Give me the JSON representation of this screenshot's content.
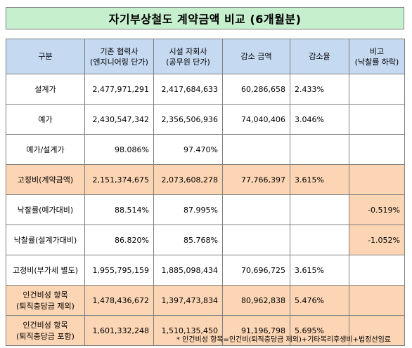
{
  "title": "자기부상철도 계약금액 비교 (6개월분)",
  "headers": {
    "col0": "구분",
    "col1_line1": "기존 협력사",
    "col1_line2": "(엔지니어링 단가)",
    "col2_line1": "시설 자회사",
    "col2_line2": "(공무원 단가)",
    "col3": "감소 금액",
    "col4": "감소율",
    "col5_line1": "비고",
    "col5_line2": "(낙찰률 하락)"
  },
  "rows": [
    {
      "label": "설계가",
      "existing": "2,477,971,291",
      "subsidiary": "2,417,684,633",
      "decrease": "60,286,658",
      "rate": "2.433%",
      "note": ""
    },
    {
      "label": "예가",
      "existing": "2,430,547,342",
      "subsidiary": "2,356,506,936",
      "decrease": "74,040,406",
      "rate": "3.046%",
      "note": ""
    },
    {
      "label": "예가/설계가",
      "existing": "98.086%",
      "subsidiary": "97.470%",
      "decrease": "",
      "rate": "",
      "note": ""
    },
    {
      "label": "고정비(계약금액)",
      "existing": "2,151,374,675",
      "subsidiary": "2,073,608,278",
      "decrease": "77,766,397",
      "rate": "3.615%",
      "note": ""
    },
    {
      "label": "낙찰률(예가대비)",
      "existing": "88.514%",
      "subsidiary": "87.995%",
      "decrease": "",
      "rate": "",
      "note": "-0.519%"
    },
    {
      "label": "낙찰률(설계가대비)",
      "existing": "86.820%",
      "subsidiary": "85.768%",
      "decrease": "",
      "rate": "",
      "note": "-1.052%"
    },
    {
      "label": "고정비(부가세 별도)",
      "existing": "1,955,795,159",
      "subsidiary": "1,885,098,434",
      "decrease": "70,696,725",
      "rate": "3.615%",
      "note": ""
    },
    {
      "label_line1": "인건비성 항목",
      "label_line2": "(퇴직충당금 제외)",
      "existing": "1,478,436,672",
      "subsidiary": "1,397,473,834",
      "decrease": "80,962,838",
      "rate": "5.476%",
      "note": ""
    },
    {
      "label_line1": "인건비성 항목",
      "label_line2": "(퇴직충당금 포함)",
      "existing": "1,601,332,248",
      "subsidiary": "1,510,135,450",
      "decrease": "91,196,798",
      "rate": "5.695%",
      "note": ""
    }
  ],
  "footnote": "* 인건비성 항목=인건비(퇴직충당금 제외)+기타복리후생비+법정선임료",
  "colors": {
    "title_bg": "#c6efce",
    "header_bg": "#c5d9f1",
    "highlight_peach": "#fcd5b4",
    "highlight_yellow": "#ffff00",
    "border": "#7f7f7f"
  }
}
